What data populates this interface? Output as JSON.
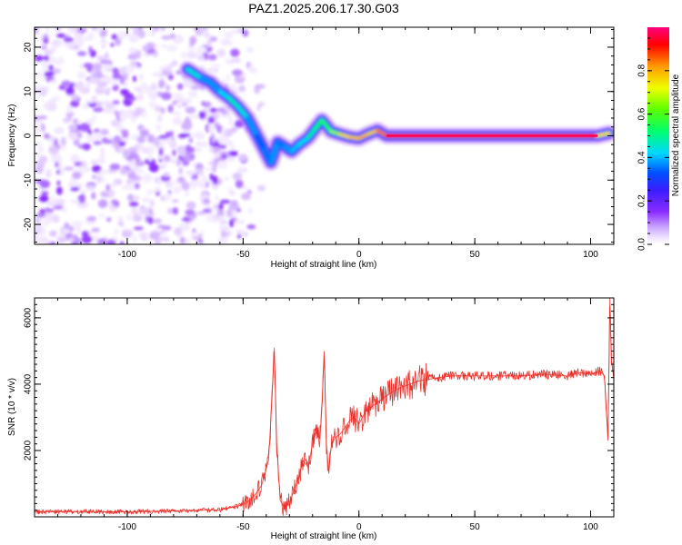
{
  "figure": {
    "title": "PAZ1.2025.206.17.30.G03"
  },
  "chart_data": [
    {
      "type": "heatmap",
      "xlabel": "Height of straight line (km)",
      "ylabel": "Frequency (Hz)",
      "xlim": [
        -140,
        110
      ],
      "ylim": [
        -24.5,
        24.5
      ],
      "x_ticks": [
        -100,
        -50,
        0,
        50,
        100
      ],
      "y_ticks": [
        -20,
        -10,
        0,
        10,
        20
      ],
      "grid": false,
      "colormap": "rainbow (magenta-blue-cyan-green-yellow-orange-red)",
      "colorbar": {
        "label": "Normalized spectral amplitude",
        "range": [
          0,
          1
        ],
        "ticks": [
          0.0,
          0.2,
          0.4,
          0.6,
          0.8
        ],
        "tick_labels": [
          "0.0",
          "0.2",
          "0.4",
          "0.6",
          "0.8"
        ]
      },
      "ridge": {
        "description": "dominant frequency vs height",
        "points": [
          {
            "x": -74,
            "y": 15,
            "amp": 0.45
          },
          {
            "x": -68,
            "y": 13,
            "amp": 0.35
          },
          {
            "x": -64,
            "y": 12,
            "amp": 0.3
          },
          {
            "x": -60,
            "y": 10,
            "amp": 0.35
          },
          {
            "x": -56,
            "y": 8.5,
            "amp": 0.4
          },
          {
            "x": -52,
            "y": 6.5,
            "amp": 0.45
          },
          {
            "x": -48,
            "y": 4,
            "amp": 0.35
          },
          {
            "x": -44,
            "y": 0,
            "amp": 0.3
          },
          {
            "x": -41,
            "y": -3,
            "amp": 0.25
          },
          {
            "x": -38,
            "y": -6,
            "amp": 0.35
          },
          {
            "x": -35,
            "y": -1.5,
            "amp": 0.3
          },
          {
            "x": -32,
            "y": -2.5,
            "amp": 0.3
          },
          {
            "x": -29,
            "y": -3.5,
            "amp": 0.35
          },
          {
            "x": -26,
            "y": -2,
            "amp": 0.35
          },
          {
            "x": -22,
            "y": -0.5,
            "amp": 0.4
          },
          {
            "x": -19,
            "y": 1.5,
            "amp": 0.45
          },
          {
            "x": -16,
            "y": 3.5,
            "amp": 0.5
          },
          {
            "x": -12,
            "y": 1,
            "amp": 0.5
          },
          {
            "x": -8,
            "y": 0.3,
            "amp": 0.7
          },
          {
            "x": -4,
            "y": -0.3,
            "amp": 0.72
          },
          {
            "x": 0,
            "y": -0.6,
            "amp": 0.75
          },
          {
            "x": 4,
            "y": 0.4,
            "amp": 0.75
          },
          {
            "x": 8,
            "y": 1.2,
            "amp": 0.7
          },
          {
            "x": 12,
            "y": 0,
            "amp": 0.9
          },
          {
            "x": 30,
            "y": 0,
            "amp": 0.95
          },
          {
            "x": 60,
            "y": 0,
            "amp": 0.95
          },
          {
            "x": 90,
            "y": 0,
            "amp": 0.95
          },
          {
            "x": 103,
            "y": 0,
            "amp": 0.9
          },
          {
            "x": 108,
            "y": 0.6,
            "amp": 0.5
          }
        ]
      },
      "noise_region": {
        "x_range": [
          -140,
          -48
        ],
        "y_range": [
          -24.5,
          24.5
        ],
        "amp_range": [
          0.02,
          0.15
        ]
      }
    },
    {
      "type": "line",
      "xlabel": "Height of straight line (km)",
      "ylabel": "SNR (10 * v/v)",
      "xlim": [
        -140,
        110
      ],
      "ylim": [
        0,
        6600
      ],
      "x_ticks": [
        -100,
        -50,
        0,
        50,
        100
      ],
      "y_ticks": [
        2000,
        4000,
        6000
      ],
      "grid": false,
      "series": [
        {
          "color": "#e8302a",
          "x": [
            -140,
            -120,
            -100,
            -80,
            -60,
            -52,
            -48,
            -45,
            -42,
            -39,
            -37.5,
            -36.5,
            -35.5,
            -34,
            -32,
            -30,
            -28,
            -26,
            -24,
            -22,
            -20,
            -18,
            -17,
            -16,
            -15,
            -14,
            -13,
            -12,
            -11,
            -10,
            -8,
            -6,
            -4,
            -2,
            0,
            3,
            6,
            10,
            14,
            18,
            22,
            26,
            30,
            35,
            40,
            50,
            60,
            70,
            80,
            90,
            95,
            100,
            104,
            106,
            107.5,
            108.3,
            109,
            110
          ],
          "y": [
            150,
            160,
            150,
            180,
            210,
            330,
            450,
            650,
            950,
            1700,
            3600,
            5100,
            2200,
            500,
            250,
            400,
            800,
            1200,
            1700,
            1500,
            2200,
            2700,
            2100,
            3300,
            5000,
            2200,
            1300,
            2100,
            2300,
            2400,
            2500,
            2700,
            2900,
            3000,
            2800,
            3200,
            3350,
            3550,
            3750,
            3900,
            4000,
            4100,
            4150,
            4200,
            4250,
            4250,
            4250,
            4250,
            4300,
            4250,
            4350,
            4300,
            4400,
            4250,
            2300,
            6600,
            4700,
            4150
          ]
        }
      ]
    }
  ]
}
